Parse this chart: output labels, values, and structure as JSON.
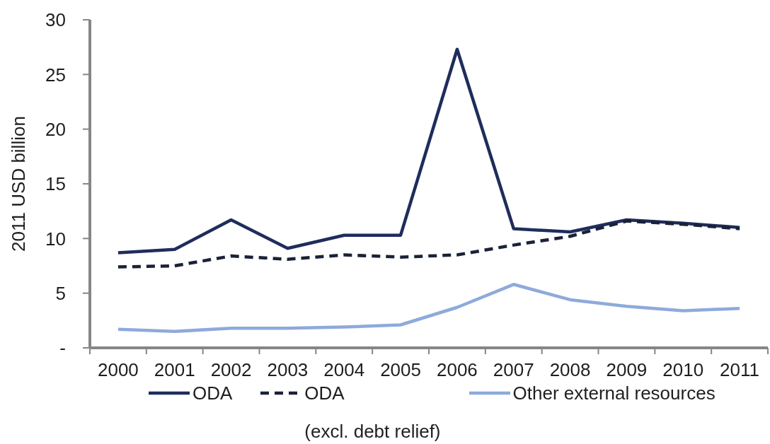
{
  "chart_data": {
    "type": "line",
    "ylabel": "2011 USD billion",
    "categories": [
      "2000",
      "2001",
      "2002",
      "2003",
      "2004",
      "2005",
      "2006",
      "2007",
      "2008",
      "2009",
      "2010",
      "2011"
    ],
    "series": [
      {
        "name": "ODA",
        "color": "#1f2d5c",
        "line_style": "solid",
        "values": [
          8.7,
          9.0,
          11.7,
          9.1,
          10.3,
          10.3,
          27.3,
          10.9,
          10.6,
          11.7,
          11.4,
          11.0
        ]
      },
      {
        "name": "ODA\n(excl. debt relief)",
        "color": "#1a2238",
        "line_style": "dashed",
        "values": [
          7.4,
          7.5,
          8.4,
          8.1,
          8.5,
          8.3,
          8.5,
          9.4,
          10.2,
          11.6,
          11.3,
          10.9
        ]
      },
      {
        "name": "Other external resources",
        "color": "#8eaadb",
        "line_style": "solid",
        "values": [
          1.7,
          1.5,
          1.8,
          1.8,
          1.9,
          2.1,
          3.7,
          5.8,
          4.4,
          3.8,
          3.4,
          3.6
        ]
      }
    ],
    "ylim": [
      0,
      30
    ],
    "yticks": [
      {
        "value": 0,
        "label": "-"
      },
      5,
      10,
      15,
      20,
      25,
      30
    ],
    "grid": false,
    "legend": "bottom"
  }
}
